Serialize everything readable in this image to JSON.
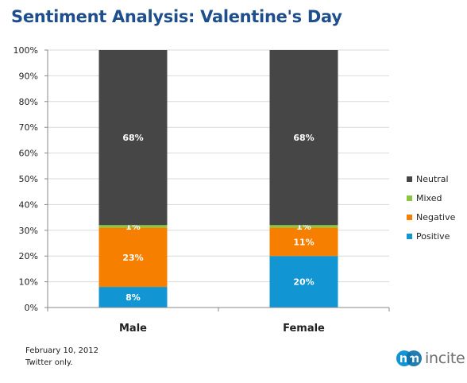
{
  "chart_data": {
    "type": "bar",
    "stacked": true,
    "title": "Sentiment Analysis: Valentine's Day",
    "categories": [
      "Male",
      "Female"
    ],
    "series": [
      {
        "name": "Positive",
        "color": "#1196d3",
        "values": [
          8,
          20
        ],
        "labels": [
          "8%",
          "20%"
        ]
      },
      {
        "name": "Negative",
        "color": "#f77f00",
        "values": [
          23,
          11
        ],
        "labels": [
          "23%",
          "11%"
        ]
      },
      {
        "name": "Mixed",
        "color": "#8cc63f",
        "values": [
          1,
          1
        ],
        "labels": [
          "1%",
          "1%"
        ]
      },
      {
        "name": "Neutral",
        "color": "#464646",
        "values": [
          68,
          68
        ],
        "labels": [
          "68%",
          "68%"
        ]
      }
    ],
    "y_ticks": [
      "0%",
      "10%",
      "20%",
      "30%",
      "40%",
      "50%",
      "60%",
      "70%",
      "80%",
      "90%",
      "100%"
    ],
    "ylim": [
      0,
      100
    ],
    "grid": true,
    "legend_position": "right"
  },
  "footnote": {
    "date": "February 10, 2012",
    "source": "Twitter only."
  },
  "logo": {
    "text": "incite",
    "colors": [
      "#1196d3",
      "#0b6fa8"
    ]
  }
}
